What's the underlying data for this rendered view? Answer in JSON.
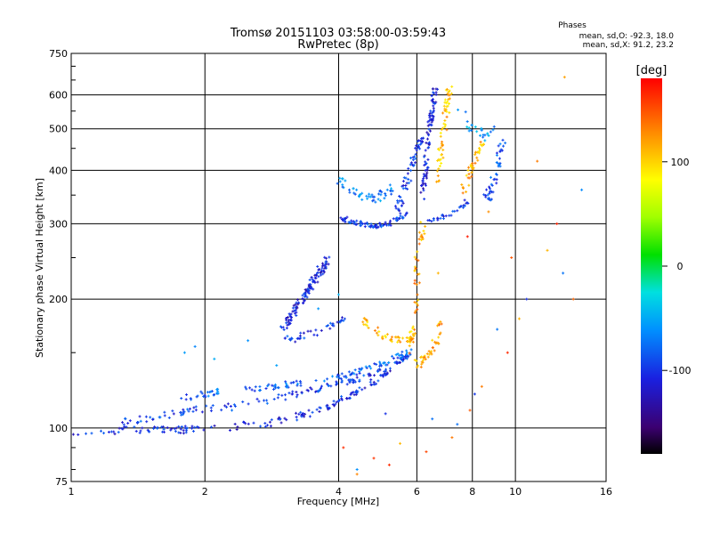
{
  "chart_data": {
    "type": "scatter",
    "title": "Tromsø 20151103 03:58:00-03:59:43",
    "subtitle": "RwPretec (8p)",
    "xlabel": "Frequency [MHz]",
    "ylabel": "Stationary phase Virtual Height [km]",
    "x_scale": "log",
    "y_scale": "log",
    "xlim": [
      1,
      16
    ],
    "ylim": [
      75,
      750
    ],
    "x_ticks": [
      1,
      2,
      4,
      6,
      8,
      10,
      16
    ],
    "x_tick_labels": [
      "1",
      "2",
      "4",
      "6",
      "8",
      "10",
      "16"
    ],
    "y_ticks": [
      75,
      100,
      200,
      300,
      400,
      500,
      600,
      750
    ],
    "y_tick_labels": [
      "75",
      "100",
      "200",
      "300",
      "400",
      "500",
      "600",
      "750"
    ],
    "grid": true,
    "colorbar": {
      "label": "[deg]",
      "range": [
        -180,
        180
      ],
      "ticks": [
        100,
        0,
        -100
      ],
      "tick_labels": [
        "100",
        "0",
        "-100"
      ]
    },
    "stats": {
      "title": "Phases",
      "line1": "mean, sd,O: -92.3, 18.0",
      "line2": "mean, sd,X:  91.2, 23.2"
    },
    "traces": [
      {
        "x": [
          1.0,
          1.2,
          1.4,
          1.6,
          1.8,
          2.0,
          2.4,
          2.8,
          3.2,
          3.6,
          4.0,
          4.3,
          4.6,
          4.9,
          5.2
        ],
        "y": [
          97,
          98,
          99,
          99,
          99,
          100,
          101,
          103,
          106,
          110,
          115,
          120,
          125,
          130,
          135
        ],
        "phase": -105,
        "spread": 2,
        "n": 160
      },
      {
        "x": [
          1.3,
          1.5,
          1.7,
          1.9,
          2.2,
          2.6,
          3.0,
          3.4,
          3.8,
          4.2,
          4.5,
          4.9,
          5.3,
          5.6,
          5.8
        ],
        "y": [
          103,
          106,
          108,
          110,
          112,
          115,
          118,
          122,
          125,
          128,
          131,
          135,
          140,
          145,
          150
        ],
        "phase": -95,
        "spread": 2,
        "n": 150
      },
      {
        "x": [
          1.7,
          1.9,
          2.1,
          2.4,
          2.7,
          3.0,
          3.4,
          3.8,
          4.2,
          4.6,
          5.0,
          5.4,
          5.8
        ],
        "y": [
          117,
          119,
          121,
          123,
          124,
          126,
          128,
          130,
          133,
          137,
          141,
          146,
          152
        ],
        "phase": -80,
        "spread": 2,
        "n": 120
      },
      {
        "x": [
          3.0,
          3.1,
          3.2,
          3.3,
          3.4,
          3.5,
          3.6,
          3.7,
          3.8
        ],
        "y": [
          170,
          180,
          190,
          200,
          210,
          220,
          230,
          240,
          250
        ],
        "phase": -110,
        "spread": 5,
        "n": 130
      },
      {
        "x": [
          3.0,
          3.2,
          3.4,
          3.6,
          3.8,
          4.0,
          4.1
        ],
        "y": [
          160,
          162,
          165,
          168,
          172,
          176,
          180
        ],
        "phase": -100,
        "spread": 3,
        "n": 40
      },
      {
        "x": [
          4.5,
          4.7,
          5.0,
          5.3,
          5.6,
          5.8,
          5.9
        ],
        "y": [
          178,
          172,
          165,
          160,
          158,
          160,
          170
        ],
        "phase": 110,
        "spread": 4,
        "n": 60
      },
      {
        "x": [
          5.8,
          5.9,
          6.0,
          6.0,
          6.1,
          6.2
        ],
        "y": [
          150,
          180,
          210,
          240,
          270,
          300
        ],
        "phase": 120,
        "spread": 8,
        "n": 40
      },
      {
        "x": [
          6.0,
          6.2,
          6.4,
          6.6,
          6.7,
          6.8
        ],
        "y": [
          140,
          145,
          150,
          158,
          165,
          175
        ],
        "phase": 120,
        "spread": 4,
        "n": 40
      },
      {
        "x": [
          4.0,
          4.3,
          4.6,
          4.9,
          5.2,
          5.5,
          5.7
        ],
        "y": [
          310,
          303,
          298,
          297,
          300,
          310,
          320
        ],
        "phase": -95,
        "spread": 4,
        "n": 80
      },
      {
        "x": [
          4.0,
          4.2,
          4.5,
          4.8,
          5.0,
          5.3
        ],
        "y": [
          380,
          365,
          350,
          345,
          350,
          360
        ],
        "phase": -70,
        "spread": 10,
        "n": 50
      },
      {
        "x": [
          5.4,
          5.6,
          5.8,
          6.0,
          6.2
        ],
        "y": [
          320,
          360,
          400,
          440,
          480
        ],
        "phase": -100,
        "spread": 10,
        "n": 60
      },
      {
        "x": [
          6.2,
          6.3,
          6.4,
          6.5,
          6.6
        ],
        "y": [
          350,
          420,
          490,
          560,
          630
        ],
        "phase": -110,
        "spread": 12,
        "n": 90
      },
      {
        "x": [
          6.7,
          6.8,
          6.9,
          7.0,
          7.1
        ],
        "y": [
          380,
          440,
          500,
          560,
          620
        ],
        "phase": 110,
        "spread": 12,
        "n": 60
      },
      {
        "x": [
          6.4,
          6.8,
          7.2,
          7.6,
          7.8
        ],
        "y": [
          305,
          310,
          318,
          330,
          340
        ],
        "phase": -100,
        "spread": 3,
        "n": 30
      },
      {
        "x": [
          7.6,
          7.8,
          8.0,
          8.2,
          8.5
        ],
        "y": [
          350,
          380,
          410,
          440,
          470
        ],
        "phase": 115,
        "spread": 10,
        "n": 40
      },
      {
        "x": [
          8.6,
          8.8,
          9.0,
          9.2,
          9.4
        ],
        "y": [
          340,
          360,
          390,
          430,
          480
        ],
        "phase": -90,
        "spread": 10,
        "n": 45
      },
      {
        "x": [
          7.5,
          8.0,
          8.5,
          9.0
        ],
        "y": [
          550,
          500,
          480,
          500
        ],
        "phase": -60,
        "spread": 15,
        "n": 25
      }
    ],
    "scattered_points": [
      {
        "x": [
          4.1,
          4.8,
          5.5,
          6.3,
          7.2,
          7.9,
          8.4,
          9.6,
          10.2,
          11.8,
          12.4,
          13.5,
          4.4,
          5.2,
          6.7,
          7.8,
          8.7,
          9.8,
          11.2,
          12.9
        ],
        "y": [
          90,
          85,
          92,
          88,
          95,
          110,
          125,
          150,
          180,
          260,
          300,
          200,
          78,
          82,
          230,
          280,
          320,
          250,
          420,
          660
        ],
        "phase": 140
      },
      {
        "x": [
          2.1,
          2.5,
          3.1,
          3.6,
          4.0,
          1.8,
          1.9,
          2.3,
          2.9,
          4.4,
          5.1,
          6.5,
          7.4,
          8.1,
          9.1,
          10.6,
          12.8,
          14.1
        ],
        "y": [
          145,
          160,
          175,
          190,
          205,
          150,
          155,
          110,
          140,
          80,
          108,
          105,
          102,
          120,
          170,
          200,
          230,
          360
        ],
        "phase": -75
      }
    ]
  }
}
